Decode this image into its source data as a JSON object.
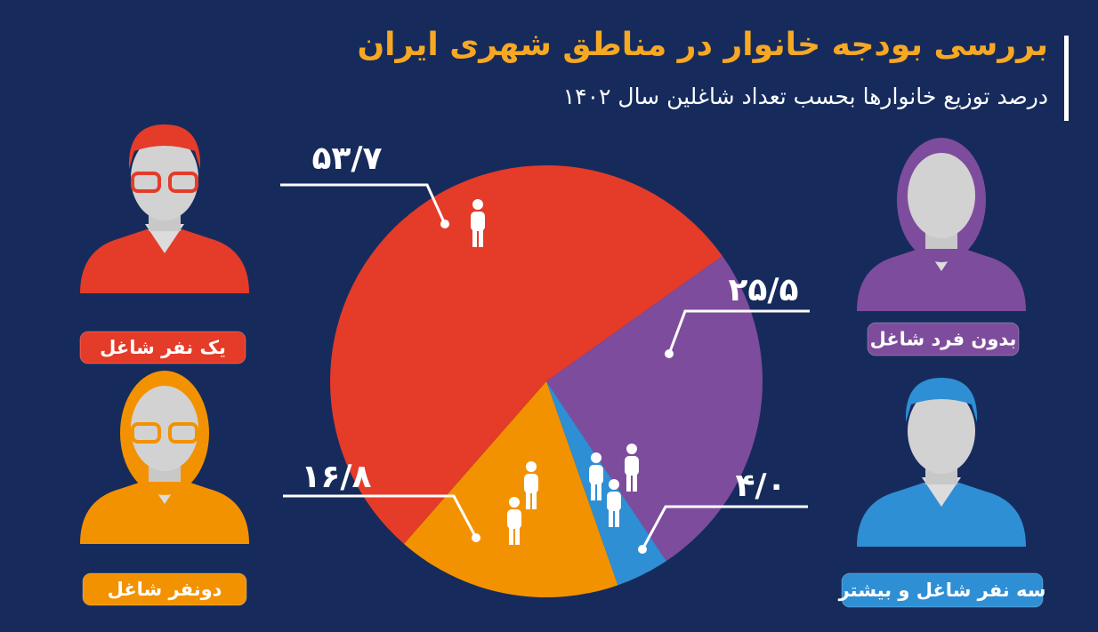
{
  "chart_data": {
    "type": "pie",
    "title": "بررسی بودجه خانوار در مناطق شهری ایران",
    "subtitle": "درصد توزیع خانوارها بحسب تعداد شاغلین سال ۱۴۰۲",
    "categories": [
      "بدون فرد شاغل",
      "سه نفر شاغل و بیشتر",
      "دونفر شاغل",
      "یک نفر شاغل"
    ],
    "values": [
      25.5,
      4.0,
      16.8,
      53.7
    ],
    "value_labels": [
      "۲۵/۵",
      "۴/۰",
      "۱۶/۸",
      "۵۳/۷"
    ],
    "colors": [
      "#7e4c9c",
      "#2f8fd5",
      "#f39200",
      "#e53b29"
    ]
  }
}
